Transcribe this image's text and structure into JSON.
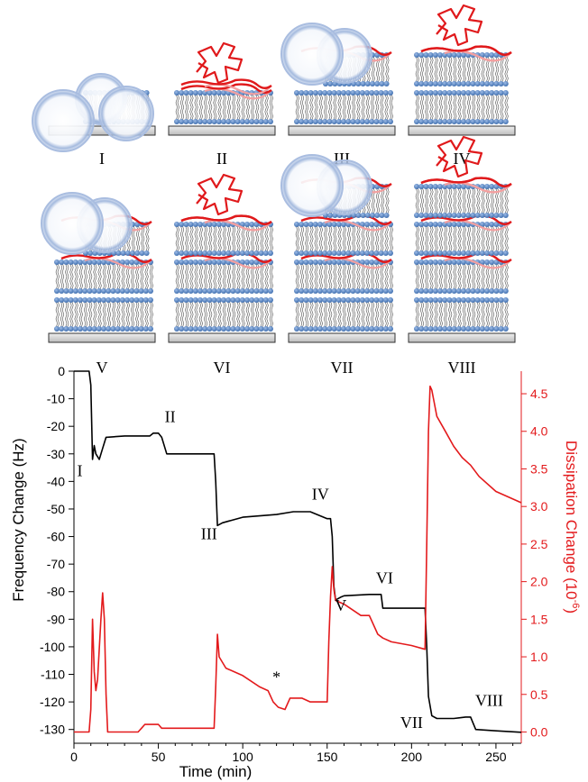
{
  "panels": {
    "top_row": [
      "I",
      "II",
      "III",
      "IV"
    ],
    "bottom_row": [
      "V",
      "VI",
      "VII",
      "VIII"
    ],
    "bilayers_per_panel": [
      1,
      1,
      2,
      2,
      3,
      3,
      4,
      4
    ],
    "vesicles_per_panel": [
      3,
      0,
      2,
      0,
      2,
      0,
      2,
      0
    ],
    "coil_in_panel": [
      false,
      true,
      false,
      true,
      false,
      true,
      false,
      true
    ],
    "colors": {
      "lipid_head": "#4f7fbf",
      "polymer": "#e0191b",
      "polymer_faded": "#f3a0a0",
      "vesicle": "#7fa0d0",
      "substrate": "#d2d2d2"
    }
  },
  "chart_data": {
    "type": "line",
    "xlabel": "Time (min)",
    "ylabel_left": "Frequency Change (Hz)",
    "ylabel_right": "Dissipation Change (10",
    "ylabel_right_exp": "-6",
    "ylabel_right_close": ")",
    "xlim": [
      0,
      265
    ],
    "ylim_left": [
      -135,
      0
    ],
    "ylim_right": [
      -0.15,
      4.8
    ],
    "x_ticks": [
      0,
      50,
      100,
      150,
      200,
      250
    ],
    "y_left_ticks": [
      0,
      -10,
      -20,
      -30,
      -40,
      -50,
      -60,
      -70,
      -80,
      -90,
      -100,
      -110,
      -120,
      -130
    ],
    "y_right_ticks": [
      "0.0",
      "0.5",
      "1.0",
      "1.5",
      "2.0",
      "2.5",
      "3.0",
      "3.5",
      "4.0",
      "4.5"
    ],
    "colors": {
      "frequency": "#000000",
      "dissipation": "#e31a1c"
    },
    "series": [
      {
        "axis": "left",
        "x": [
          0,
          9,
          10,
          11,
          12,
          13,
          15,
          17,
          18,
          19,
          30,
          45,
          47,
          50,
          52,
          55,
          80,
          83,
          84,
          85,
          88,
          100,
          120,
          130,
          140,
          150,
          152,
          153,
          154,
          155,
          158,
          160,
          175,
          182,
          183,
          185,
          200,
          208,
          209,
          210,
          212,
          215,
          225,
          232,
          235,
          238,
          250,
          265
        ],
        "y": [
          0,
          0,
          -5,
          -32,
          -27,
          -30,
          -32,
          -28,
          -26,
          -24,
          -23.5,
          -23.5,
          -22.5,
          -22.5,
          -24,
          -30,
          -30,
          -30,
          -40,
          -56,
          -55,
          -53,
          -52,
          -51,
          -51,
          -53.5,
          -53.5,
          -60,
          -78,
          -83,
          -82,
          -81.5,
          -81,
          -81,
          -86,
          -86,
          -86,
          -86,
          -100,
          -118,
          -125,
          -126,
          -126,
          -125.5,
          -125.5,
          -130,
          -130.5,
          -131
        ]
      },
      {
        "axis": "right",
        "x": [
          0,
          9,
          10,
          11,
          12,
          13,
          14,
          16,
          17,
          18,
          19,
          20,
          38,
          40,
          42,
          45,
          48,
          50,
          52,
          60,
          70,
          80,
          83,
          84,
          85,
          86,
          90,
          100,
          110,
          115,
          118,
          121,
          125,
          128,
          135,
          140,
          150,
          151,
          152,
          153,
          154,
          155,
          160,
          170,
          175,
          180,
          183,
          188,
          200,
          208,
          209,
          210,
          211,
          212,
          215,
          220,
          225,
          230,
          235,
          240,
          250,
          265
        ],
        "y": [
          0.0,
          0.0,
          0.3,
          1.5,
          0.8,
          0.55,
          0.7,
          1.5,
          1.85,
          1.5,
          0.5,
          0.0,
          0.0,
          0.05,
          0.1,
          0.1,
          0.1,
          0.1,
          0.05,
          0.05,
          0.05,
          0.05,
          0.05,
          0.6,
          1.3,
          1.0,
          0.85,
          0.75,
          0.6,
          0.55,
          0.4,
          0.33,
          0.3,
          0.45,
          0.45,
          0.4,
          0.4,
          1.2,
          1.8,
          2.2,
          1.9,
          1.75,
          1.7,
          1.55,
          1.55,
          1.3,
          1.25,
          1.2,
          1.15,
          1.1,
          2.5,
          4.0,
          4.6,
          4.55,
          4.2,
          4.0,
          3.8,
          3.65,
          3.55,
          3.4,
          3.2,
          3.05
        ]
      }
    ],
    "annotations": [
      {
        "text": "I",
        "x": 3.5,
        "y": -38
      },
      {
        "text": "II",
        "x": 57,
        "y": -18.5
      },
      {
        "text": "III",
        "x": 80,
        "y": -61
      },
      {
        "text": "IV",
        "x": 146,
        "y": -46.5
      },
      {
        "text": "V",
        "x": 158,
        "y": -87
      },
      {
        "text": "VI",
        "x": 184,
        "y": -77
      },
      {
        "text": "VII",
        "x": 200,
        "y": -129.5
      },
      {
        "text": "VIII",
        "x": 246,
        "y": -121.5
      },
      {
        "text": "*",
        "x": 120,
        "y": -113
      }
    ]
  }
}
